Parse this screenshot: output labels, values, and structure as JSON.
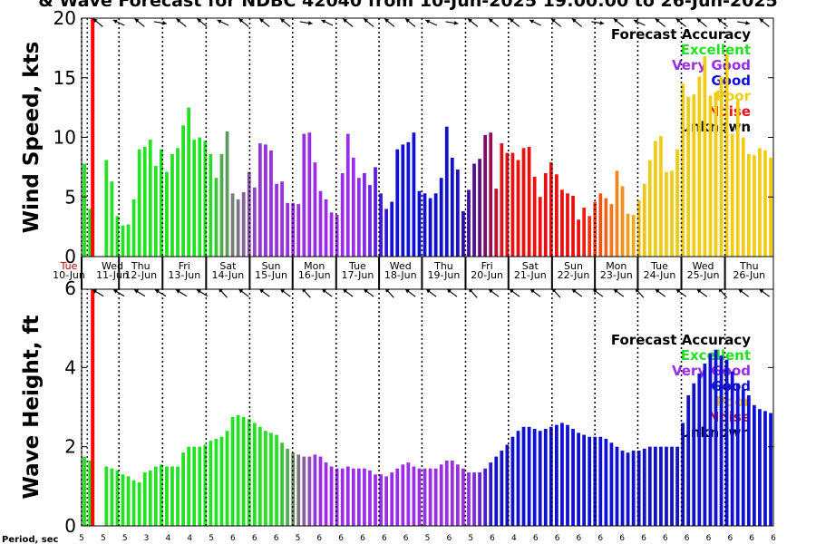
{
  "title": "& Wave Forecast for NDBC 42040 from 10-Jun-2025 19:00:00 to 26-Jun-2025",
  "colors": {
    "excellent": "#22e222",
    "very_good": "#9a2ee6",
    "good": "#1010d0",
    "poor": "#f0cc14",
    "noise": "#e81010",
    "unknown": "#000000",
    "now_line": "#ff0000"
  },
  "legend": {
    "title": "Forecast Accuracy",
    "items": [
      "Excellent",
      "Very Good",
      "Good",
      "Poor",
      "Noise",
      "Unknown"
    ]
  },
  "day_labels": [
    {
      "day": "Tue",
      "date": "10-Jun"
    },
    {
      "day": "Wed",
      "date": "11-Jun"
    },
    {
      "day": "Thu",
      "date": "12-Jun"
    },
    {
      "day": "Fri",
      "date": "13-Jun"
    },
    {
      "day": "Sat",
      "date": "14-Jun"
    },
    {
      "day": "Sun",
      "date": "15-Jun"
    },
    {
      "day": "Mon",
      "date": "16-Jun"
    },
    {
      "day": "Tue",
      "date": "17-Jun"
    },
    {
      "day": "Wed",
      "date": "18-Jun"
    },
    {
      "day": "Thu",
      "date": "19-Jun"
    },
    {
      "day": "Fri",
      "date": "20-Jun"
    },
    {
      "day": "Sat",
      "date": "21-Jun"
    },
    {
      "day": "Sun",
      "date": "22-Jun"
    },
    {
      "day": "Mon",
      "date": "23-Jun"
    },
    {
      "day": "Tue",
      "date": "24-Jun"
    },
    {
      "day": "Wed",
      "date": "25-Jun"
    },
    {
      "day": "Thu",
      "date": "26-Jun"
    }
  ],
  "period_label": "Period, sec",
  "periods": [
    5,
    5,
    5,
    3,
    4,
    4,
    5,
    6,
    6,
    6,
    5,
    6,
    6,
    6,
    6,
    6,
    5,
    6,
    5,
    6,
    4,
    6,
    6,
    6,
    6,
    6,
    6,
    6,
    6,
    6,
    6,
    6,
    6
  ],
  "chart_data": [
    {
      "type": "bar",
      "name": "wind",
      "ylabel": "Wind Speed, kts",
      "xlabel": "",
      "ylim": [
        0,
        20
      ],
      "yticks": [
        0,
        5,
        10,
        15,
        20
      ],
      "x_range_days": [
        10.7917,
        26.7917
      ],
      "values": [
        7.8,
        4.0,
        0.0,
        0.0,
        8.1,
        6.3,
        3.4,
        2.6,
        2.7,
        4.8,
        9.0,
        9.2,
        9.8,
        7.6,
        9.0,
        7.1,
        8.6,
        9.1,
        11.0,
        12.5,
        9.8,
        10.0,
        9.7,
        8.6,
        6.6,
        8.6,
        10.5,
        5.3,
        4.8,
        5.4,
        7.1,
        5.8,
        9.5,
        9.4,
        8.9,
        6.1,
        6.3,
        4.5,
        4.5,
        4.4,
        10.3,
        10.4,
        7.9,
        5.5,
        4.8,
        3.7,
        3.5,
        7.0,
        10.3,
        8.3,
        6.6,
        7.0,
        6.0,
        7.5,
        5.3,
        4.0,
        4.6,
        9.0,
        9.4,
        9.6,
        10.4,
        5.5,
        5.3,
        4.9,
        5.3,
        6.6,
        10.9,
        8.3,
        7.3,
        3.8,
        5.6,
        7.8,
        8.2,
        10.2,
        10.4,
        5.7,
        9.5,
        8.7,
        8.7,
        8.1,
        9.1,
        9.2,
        6.7,
        5.0,
        7.0,
        7.9,
        6.9,
        5.6,
        5.3,
        5.1,
        3.1,
        4.1,
        3.4,
        4.6,
        5.3,
        4.9,
        4.4,
        7.2,
        5.9,
        3.6,
        3.5,
        4.7,
        6.1,
        8.1,
        9.7,
        10.1,
        7.1,
        7.2,
        9.0,
        14.5,
        13.4,
        13.6,
        15.1,
        16.8,
        13.5,
        13.8,
        15.1,
        17.0,
        10.3,
        13.1,
        10.0,
        8.6,
        8.5,
        9.1,
        8.9,
        8.3
      ]
    },
    {
      "type": "bar",
      "name": "wave",
      "ylabel": "Wave Height, ft",
      "xlabel": "",
      "ylim": [
        0,
        6
      ],
      "yticks": [
        0,
        2,
        4,
        6
      ],
      "x_range_days": [
        10.7917,
        26.7917
      ],
      "values": [
        1.75,
        1.65,
        0.0,
        0.0,
        1.5,
        1.45,
        1.4,
        1.3,
        1.25,
        1.15,
        1.1,
        1.35,
        1.4,
        1.5,
        1.55,
        1.5,
        1.5,
        1.5,
        1.85,
        2.0,
        2.0,
        2.0,
        2.05,
        2.15,
        2.2,
        2.25,
        2.4,
        2.75,
        2.8,
        2.75,
        2.7,
        2.6,
        2.5,
        2.4,
        2.35,
        2.3,
        2.1,
        1.95,
        1.85,
        1.8,
        1.75,
        1.75,
        1.8,
        1.75,
        1.6,
        1.5,
        1.45,
        1.45,
        1.5,
        1.45,
        1.45,
        1.45,
        1.4,
        1.3,
        1.3,
        1.25,
        1.35,
        1.45,
        1.55,
        1.6,
        1.5,
        1.45,
        1.45,
        1.45,
        1.45,
        1.55,
        1.65,
        1.65,
        1.55,
        1.45,
        1.35,
        1.35,
        1.35,
        1.45,
        1.6,
        1.75,
        1.9,
        2.05,
        2.25,
        2.4,
        2.5,
        2.5,
        2.45,
        2.4,
        2.45,
        2.5,
        2.55,
        2.6,
        2.55,
        2.45,
        2.35,
        2.3,
        2.25,
        2.25,
        2.25,
        2.2,
        2.1,
        2.0,
        1.9,
        1.85,
        1.9,
        1.9,
        1.95,
        2.0,
        2.0,
        2.0,
        2.0,
        2.0,
        2.0,
        2.6,
        3.3,
        3.6,
        3.85,
        4.1,
        4.35,
        4.45,
        4.3,
        4.2,
        3.9,
        3.6,
        3.45,
        3.3,
        3.05,
        2.95,
        2.9,
        2.85
      ]
    }
  ]
}
